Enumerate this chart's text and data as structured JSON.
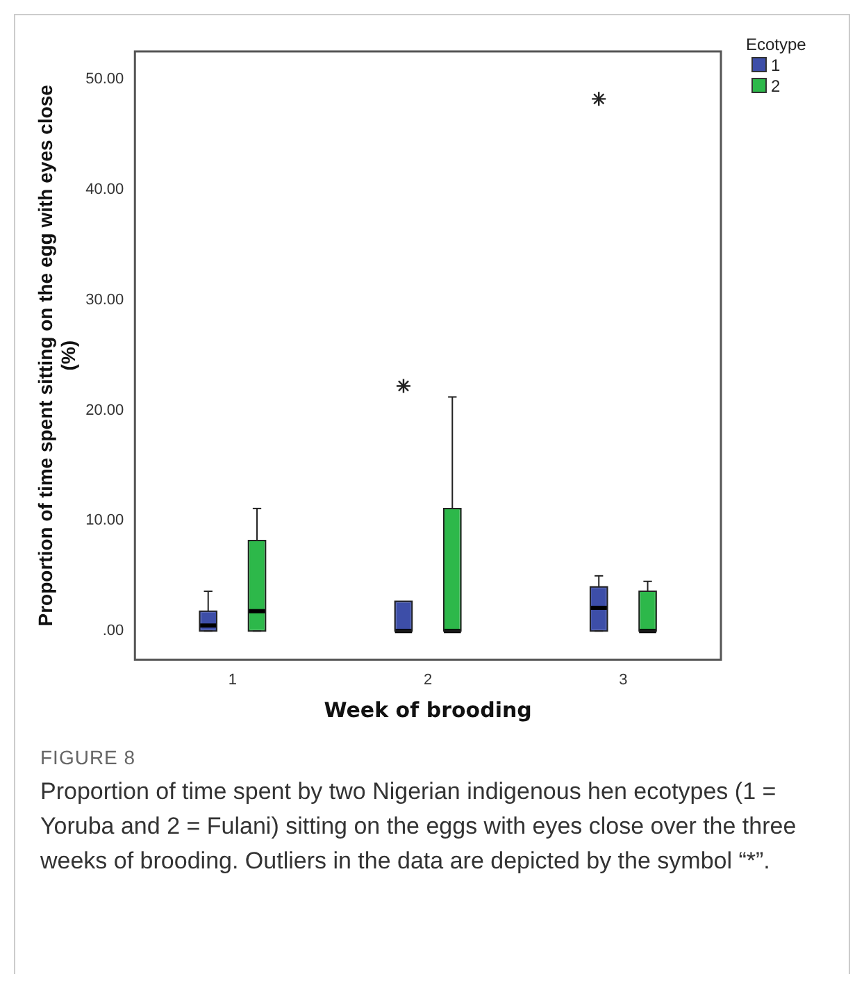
{
  "chart_data": {
    "type": "box",
    "xlabel": "Week of brooding",
    "ylabel": "Proportion of time spent sitting on the egg with eyes close\n(%)",
    "legend_title": "Ecotype",
    "legend": "top right",
    "grid": false,
    "categories": [
      "1",
      "2",
      "3"
    ],
    "ylim": [
      -2.6,
      52.5
    ],
    "yticks": [
      {
        "value": 0,
        "label": ".00"
      },
      {
        "value": 10,
        "label": "10.00"
      },
      {
        "value": 20,
        "label": "20.00"
      },
      {
        "value": 30,
        "label": "30.00"
      },
      {
        "value": 40,
        "label": "40.00"
      },
      {
        "value": 50,
        "label": "50.00"
      }
    ],
    "series": [
      {
        "name": "1",
        "color": "#3d4ea8",
        "boxes": [
          {
            "low": 0,
            "q1": 0,
            "median": 0.5,
            "q3": 1.8,
            "high": 3.6
          },
          {
            "low": 0,
            "q1": 0,
            "median": 0,
            "q3": 2.7,
            "high": 2.7,
            "outliers": [
              22.2
            ]
          },
          {
            "low": 0,
            "q1": 0,
            "median": 2.1,
            "q3": 4.0,
            "high": 5.0,
            "outliers": [
              48.2
            ]
          }
        ]
      },
      {
        "name": "2",
        "color": "#2db84a",
        "boxes": [
          {
            "low": 0,
            "q1": 0,
            "median": 1.8,
            "q3": 8.2,
            "high": 11.1
          },
          {
            "low": 0,
            "q1": 0,
            "median": 0,
            "q3": 11.1,
            "high": 21.2
          },
          {
            "low": 0,
            "q1": 0,
            "median": 0,
            "q3": 3.6,
            "high": 4.5
          }
        ]
      }
    ],
    "annotations": [
      "FIGURE 8",
      "Proportion of time spent by two Nigerian indigenous hen ecotypes (1 = Yoruba and 2 = Fulani) sitting on the eggs with eyes close over the three weeks of brooding. Outliers in the data are depicted by the symbol “*”."
    ]
  }
}
